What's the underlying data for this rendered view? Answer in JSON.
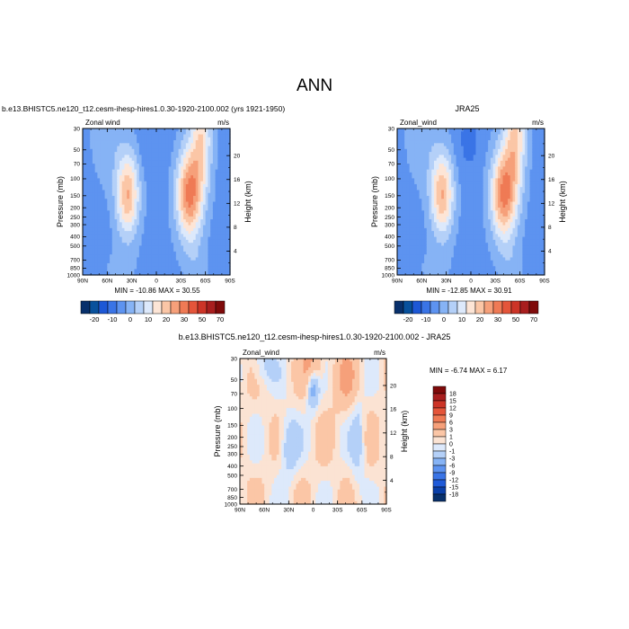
{
  "main_title": "ANN",
  "colors": {
    "palette_top": [
      "#08306b",
      "#08519c",
      "#1d58d6",
      "#3a74e6",
      "#5d93f0",
      "#86b3f5",
      "#b4d0f8",
      "#dde9fb",
      "#fde5d6",
      "#fbc6a6",
      "#f6a07a",
      "#ef7a55",
      "#e4553a",
      "#cc3427",
      "#a81e1e",
      "#7f0a0a"
    ],
    "palette_diff": [
      "#08306b",
      "#0a3fa8",
      "#1f5ad8",
      "#3a74e6",
      "#5d93f0",
      "#86b3f5",
      "#b4d0f8",
      "#dde9fb",
      "#fbe3d3",
      "#fbc6a6",
      "#f6a07a",
      "#ef7a55",
      "#e4553a",
      "#cc3427",
      "#a81e1e",
      "#7f0a0a"
    ]
  },
  "chart_data": [
    {
      "id": "model",
      "type": "heatmap",
      "title": "b.e13.BHISTC5.ne120_t12.cesm-ihesp-hires1.0.30-1920-2100.002 (yrs 1921-1950)",
      "left_label": "Zonal wind",
      "right_label": "m/s",
      "ylabel": "Pressure (mb)",
      "y2label": "Height (km)",
      "x_ticks": [
        "90N",
        "60N",
        "30N",
        "0",
        "30S",
        "60S",
        "90S"
      ],
      "y_ticks": [
        "30",
        "50",
        "70",
        "100",
        "150",
        "200",
        "250",
        "300",
        "400",
        "500",
        "700",
        "850",
        "1000"
      ],
      "y2_ticks": [
        "20",
        "16",
        "12",
        "8",
        "4"
      ],
      "stats": "MIN = -10.86  MAX =  30.55",
      "min": -10.86,
      "max": 30.55,
      "colorbar_labels": [
        "-20",
        "-10",
        "0",
        "10",
        "20",
        "30",
        "50",
        "70"
      ],
      "x_range": [
        90,
        -90
      ],
      "y_range_mb": [
        1000,
        30
      ],
      "grid": false
    },
    {
      "id": "obs",
      "type": "heatmap",
      "title": "JRA25",
      "left_label": "Zonal_wind",
      "right_label": "m/s",
      "ylabel": "Pressure (mb)",
      "y2label": "Height (km)",
      "x_ticks": [
        "90N",
        "60N",
        "30N",
        "0",
        "30S",
        "60S",
        "90S"
      ],
      "y_ticks": [
        "30",
        "50",
        "70",
        "100",
        "150",
        "200",
        "250",
        "300",
        "400",
        "500",
        "700",
        "850",
        "1000"
      ],
      "y2_ticks": [
        "20",
        "16",
        "12",
        "8",
        "4"
      ],
      "stats": "MIN = -12.85  MAX =  30.91",
      "min": -12.85,
      "max": 30.91,
      "colorbar_labels": [
        "-20",
        "-10",
        "0",
        "10",
        "20",
        "30",
        "50",
        "70"
      ],
      "x_range": [
        90,
        -90
      ],
      "y_range_mb": [
        1000,
        30
      ],
      "grid": false
    },
    {
      "id": "diff",
      "type": "heatmap",
      "title": "b.e13.BHISTC5.ne120_t12.cesm-ihesp-hires1.0.30-1920-2100.002 - JRA25",
      "left_label": "Zonal_wind",
      "right_label": "m/s",
      "ylabel": "Pressure (mb)",
      "y2label": "Height (km)",
      "x_ticks": [
        "90N",
        "60N",
        "30N",
        "0",
        "30S",
        "60S",
        "90S"
      ],
      "y_ticks": [
        "30",
        "50",
        "70",
        "100",
        "150",
        "200",
        "250",
        "300",
        "400",
        "500",
        "700",
        "850",
        "1000"
      ],
      "y2_ticks": [
        "20",
        "16",
        "12",
        "8",
        "4"
      ],
      "stats": "MIN =  -6.74  MAX =   6.17",
      "min": -6.74,
      "max": 6.17,
      "colorbar_labels": [
        "18",
        "15",
        "12",
        "9",
        "6",
        "3",
        "1",
        "0",
        "-1",
        "-3",
        "-6",
        "-9",
        "-12",
        "-15",
        "-18"
      ],
      "x_range": [
        90,
        -90
      ],
      "y_range_mb": [
        1000,
        30
      ],
      "grid": false
    }
  ]
}
